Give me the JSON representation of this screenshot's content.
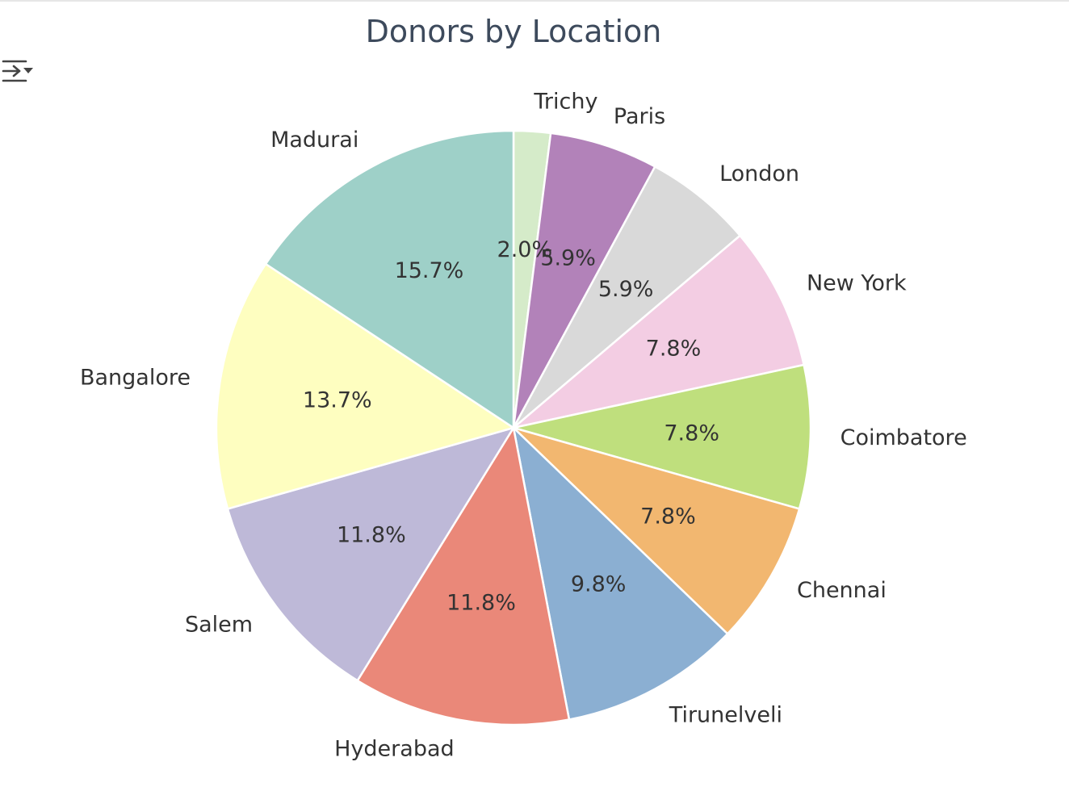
{
  "toolbar": {
    "output_toggle_icon": "collapse-output-icon"
  },
  "colors": {
    "title": "#3d4a5c",
    "text": "#333333",
    "slice_edge": "#ffffff"
  },
  "chart_data": {
    "type": "pie",
    "title": "Donors by Location",
    "start_angle_deg": 90,
    "direction": "clockwise",
    "slices": [
      {
        "label": "Trichy",
        "pct_label": "2.0%",
        "value": 2.0,
        "color": "#d5ebc9"
      },
      {
        "label": "Paris",
        "pct_label": "5.9%",
        "value": 5.9,
        "color": "#b282b9"
      },
      {
        "label": "London",
        "pct_label": "5.9%",
        "value": 5.9,
        "color": "#d9d9d9"
      },
      {
        "label": "New York",
        "pct_label": "7.8%",
        "value": 7.8,
        "color": "#f3cde3"
      },
      {
        "label": "Coimbatore",
        "pct_label": "7.8%",
        "value": 7.8,
        "color": "#bfdf7d"
      },
      {
        "label": "Chennai",
        "pct_label": "7.8%",
        "value": 7.8,
        "color": "#f2b770"
      },
      {
        "label": "Tirunelveli",
        "pct_label": "9.8%",
        "value": 9.8,
        "color": "#8bafd2"
      },
      {
        "label": "Hyderabad",
        "pct_label": "11.8%",
        "value": 11.8,
        "color": "#ea8879"
      },
      {
        "label": "Salem",
        "pct_label": "11.8%",
        "value": 11.8,
        "color": "#beb9d8"
      },
      {
        "label": "Bangalore",
        "pct_label": "13.7%",
        "value": 13.7,
        "color": "#fefec0"
      },
      {
        "label": "Madurai",
        "pct_label": "15.7%",
        "value": 15.7,
        "color": "#9ed0c8"
      }
    ]
  }
}
